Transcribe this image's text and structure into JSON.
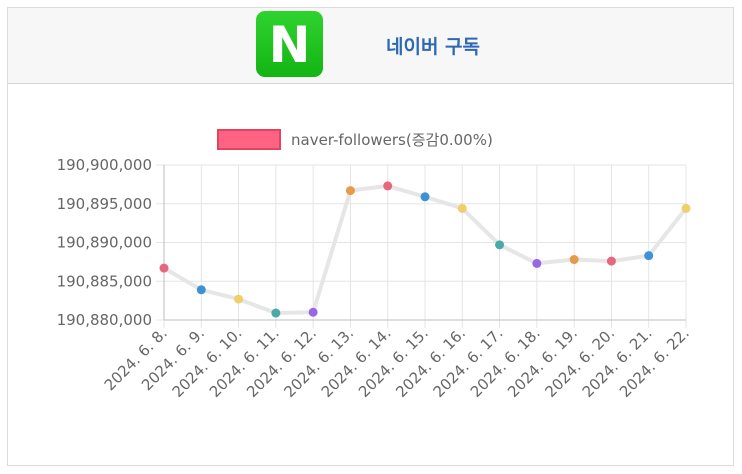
{
  "header": {
    "logo_letter": "N",
    "logo_name": "naver-logo",
    "title": "네이버 구독",
    "logo_color": "#1ec31e",
    "title_color": "#2d68b2"
  },
  "chart_data": {
    "type": "line",
    "title": "",
    "xlabel": "",
    "ylabel": "",
    "categories": [
      "2024. 6. 8.",
      "2024. 6. 9.",
      "2024. 6. 10.",
      "2024. 6. 11.",
      "2024. 6. 12.",
      "2024. 6. 13.",
      "2024. 6. 14.",
      "2024. 6. 15.",
      "2024. 6. 16.",
      "2024. 6. 17.",
      "2024. 6. 18.",
      "2024. 6. 19.",
      "2024. 6. 20.",
      "2024. 6. 21.",
      "2024. 6. 22."
    ],
    "series": [
      {
        "name": "naver-followers(증감0.00%)",
        "values": [
          190886700,
          190883900,
          190882700,
          190880900,
          190881000,
          190896700,
          190897300,
          190895900,
          190894400,
          190889700,
          190887300,
          190887800,
          190887600,
          190888300,
          190894400
        ],
        "line_color": "#e6e6e6",
        "legend_color": "#ff6384",
        "point_colors": [
          "#e8677f",
          "#3d92d6",
          "#efcf6b",
          "#4aaaa8",
          "#9a66e8",
          "#e89a4c",
          "#e8677f",
          "#3d92d6",
          "#efcf6b",
          "#4aaaa8",
          "#9a66e8",
          "#e89a4c",
          "#e8677f",
          "#3d92d6",
          "#efcf6b"
        ]
      }
    ],
    "ylim": [
      190880000,
      190900000
    ],
    "yticks": [
      "190,880,000",
      "190,885,000",
      "190,890,000",
      "190,895,000",
      "190,900,000"
    ],
    "grid": true,
    "legend_position": "top"
  }
}
